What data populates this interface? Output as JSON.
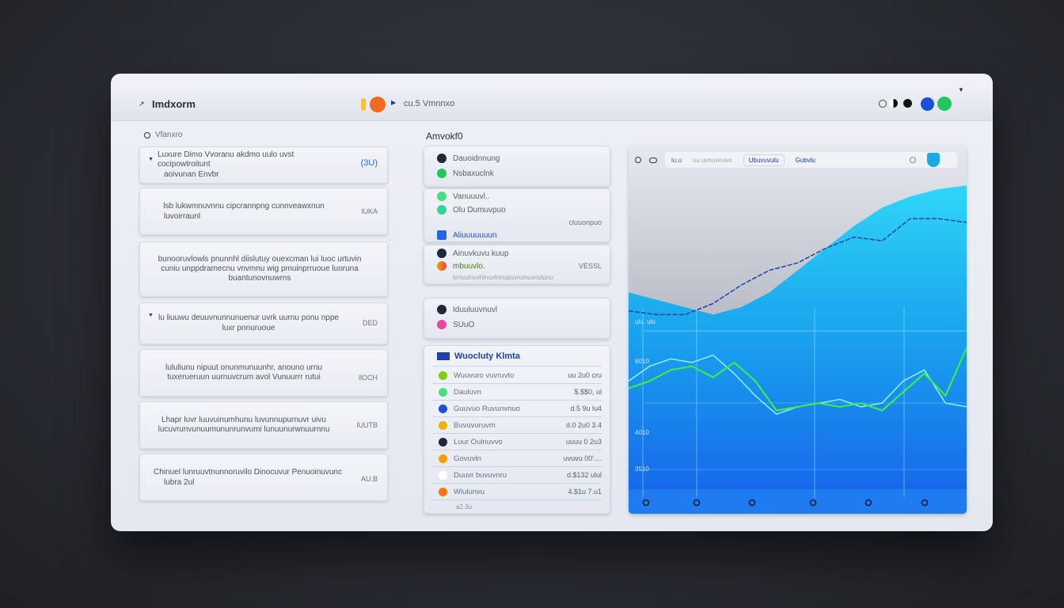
{
  "header": {
    "title": "Imdxorm",
    "breadcrumb": "cu.5 Vmnnxo"
  },
  "left": {
    "label": "Vfanxro",
    "cards": [
      {
        "text": "Luxure Dimo Vvoranu akdmo uulo uvst cocipowtroitunt",
        "sub": "aoivunan Envbr",
        "value": "(3U)"
      },
      {
        "text": "lsb lukwmnuvnnu cipcrannpng cunnveawxnun",
        "sub": "luvoirraunl",
        "value": "lUKA"
      },
      {
        "text": "bunooruvlowls pnunnhl diislutuy ouexcman lui luoc urtuvin cuniu unppdramecnu vnvmnu wig pmuinprruoue luoruna buantunovnuwrns",
        "sub": "",
        "value": ""
      },
      {
        "text": "lu liuuwu deuuvnunnunuenur uvrk uurnu ponu nppe",
        "sub": "luxr  pnnuruoue",
        "value": "DED"
      },
      {
        "text": "lululiunu nipuut onunmunuunhr, anouno urnu tuxerueruun uurnuvcrum avol Vunuurrr rutui",
        "sub": "",
        "value": "llOCH"
      },
      {
        "text": "Lhapr luvr luuvuinumhunu luvunnupurnuvr uivu lucuvrunvunuumununrunvumi lunuunurwnuurnnu",
        "sub": "",
        "value": "lUUTB"
      },
      {
        "text": "Chinuel lunruuvtnunnoruvilo    Dinocuvur Penuoinuvunc",
        "sub": "lubra 2ul",
        "value": "AU.B"
      }
    ]
  },
  "middle": {
    "label": "Amvokf0",
    "group1": [
      {
        "label": "Dauoidnnung",
        "color": "#1f2937"
      },
      {
        "label": "Nsbaxuclnk",
        "color": "#22c55e"
      }
    ],
    "group2": [
      {
        "label": "Vanuuuvl..",
        "color": "#4ade80"
      },
      {
        "label": "Olu Dumuvpuo",
        "color": "#34d399"
      },
      {
        "label": "Aliuuuuuuun",
        "color": "#2563eb",
        "value": "cluuonpuo"
      }
    ],
    "group3": [
      {
        "label": "Ainuvkuvu kuup",
        "color": "#1e293b",
        "value": ""
      },
      {
        "label": "mbuuvlo.",
        "color": "#f97316",
        "value": "VESSL"
      },
      {
        "label": "lvnuulnuvhinuvlnnupuvnunuvnulunu",
        "color": "",
        "value": ""
      }
    ],
    "group4": [
      {
        "label": "Iduuluuvnuvl",
        "color": "#1e293b"
      },
      {
        "label": "SUuO",
        "color": "#ec4899"
      }
    ],
    "list": {
      "title": "Wuocluty Klmta",
      "items": [
        {
          "label": "Wuuvuro vuvruvto",
          "value": "uu 2u0 cru",
          "color": "#84cc16"
        },
        {
          "label": "Dauluvn",
          "value": "$.$$0, ul",
          "color": "#4ade80"
        },
        {
          "label": "Guuvuo Ruvunvnuo",
          "value": "d.5 9u lu4",
          "color": "#1d4ed8"
        },
        {
          "label": "Buvuvuruvm",
          "value": "d.0 2u0 3.4",
          "color": "#eab308"
        },
        {
          "label": "Luur  Oulnuvvo",
          "value": "uuuu 0 2u3",
          "color": "#1f2937"
        },
        {
          "label": "Govuvln",
          "value": "uvuvu 00'....",
          "color": "#f59e0b"
        },
        {
          "label": "Duuvr buvuvnru",
          "value": "d.$132 ulul",
          "color": "#ffffff"
        },
        {
          "label": "Wlulunvu",
          "value": "4.$1u 7.u1",
          "color": "#f97316"
        }
      ],
      "footer": "a2.3u"
    }
  },
  "chart_toolbar": {
    "labels": [
      "lu.u",
      "uu uvnuvnuvo",
      "Ubuvuvulu",
      "Gubvlu"
    ]
  },
  "chart_data": {
    "type": "area",
    "y_tick_labels": [
      "ulu, ulu",
      "6010",
      "4010",
      "3510"
    ],
    "colors": {
      "area": "#22c7f0",
      "baseline": "#1d6ff0",
      "green": "#3dec4a",
      "cyan": "#8ef2ff",
      "dashed": "#1e40af"
    },
    "series": [
      {
        "values": [
          60,
          58,
          56,
          54,
          56,
          60,
          66,
          72,
          78,
          83,
          86,
          88,
          89
        ]
      },
      {
        "values": [
          55,
          54,
          54,
          57,
          62,
          66,
          68,
          72,
          75,
          74,
          80,
          80,
          79
        ]
      },
      {
        "values": [
          34,
          36,
          39,
          40,
          37,
          41,
          36,
          28,
          29,
          30,
          29,
          30,
          28,
          33,
          38,
          32,
          45
        ]
      },
      {
        "values": [
          36,
          40,
          42,
          41,
          43,
          38,
          32,
          27,
          29,
          30,
          31,
          29,
          30,
          36,
          39,
          30,
          29
        ]
      }
    ]
  },
  "header_icons": [
    "circle-outline",
    "half-circle",
    "black-circle",
    "blue-circle",
    "green-circle"
  ]
}
